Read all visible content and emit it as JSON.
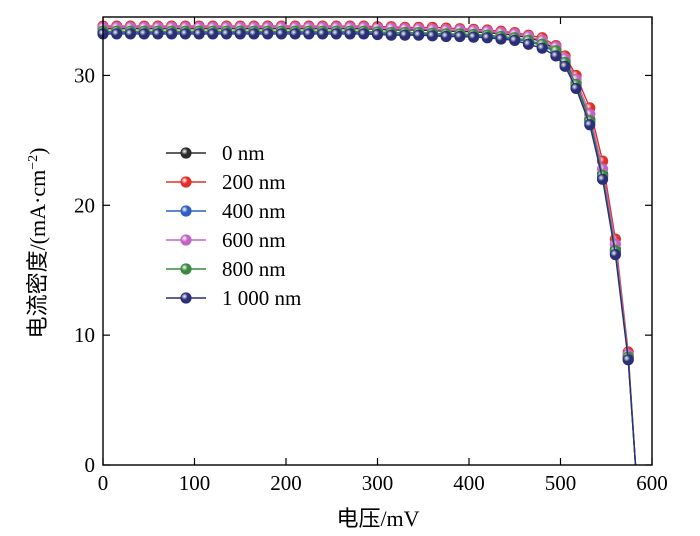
{
  "chart_data": {
    "type": "line",
    "title": "",
    "xlabel": "电压/mV",
    "ylabel": "电流密度/(mA·cm⁻²)",
    "ylabel_parts": {
      "main": "电流密度/(mA·cm",
      "sup": "−2",
      "close": ")"
    },
    "xlim": [
      0,
      600
    ],
    "ylim": [
      0,
      34.5
    ],
    "x_ticks": [
      "0",
      "100",
      "200",
      "300",
      "400",
      "500",
      "600"
    ],
    "y_ticks": [
      "0",
      "10",
      "20",
      "30"
    ],
    "x_tick_values": [
      0,
      100,
      200,
      300,
      400,
      500,
      600
    ],
    "y_tick_values": [
      0,
      10,
      20,
      30
    ],
    "grid": false,
    "legend_position": "center-left",
    "x": [
      0,
      15,
      30,
      45,
      60,
      75,
      90,
      105,
      120,
      135,
      150,
      165,
      180,
      195,
      210,
      225,
      240,
      255,
      270,
      285,
      300,
      315,
      330,
      345,
      360,
      375,
      390,
      405,
      420,
      435,
      450,
      465,
      480,
      495,
      505,
      517,
      532,
      546,
      560,
      574,
      582
    ],
    "series": [
      {
        "name": "0 nm",
        "color": "#2b2b2b",
        "values": [
          33.6,
          33.6,
          33.6,
          33.6,
          33.6,
          33.6,
          33.6,
          33.6,
          33.6,
          33.6,
          33.6,
          33.6,
          33.6,
          33.6,
          33.6,
          33.6,
          33.6,
          33.6,
          33.6,
          33.6,
          33.55,
          33.5,
          33.5,
          33.5,
          33.45,
          33.4,
          33.4,
          33.35,
          33.3,
          33.2,
          33.1,
          32.9,
          32.6,
          32.0,
          31.1,
          29.4,
          26.6,
          22.4,
          16.6,
          8.4,
          0
        ]
      },
      {
        "name": "200 nm",
        "color": "#e0302c",
        "values": [
          33.8,
          33.8,
          33.8,
          33.8,
          33.8,
          33.8,
          33.8,
          33.8,
          33.8,
          33.8,
          33.8,
          33.8,
          33.8,
          33.8,
          33.8,
          33.8,
          33.8,
          33.8,
          33.8,
          33.8,
          33.75,
          33.75,
          33.7,
          33.7,
          33.7,
          33.65,
          33.6,
          33.55,
          33.5,
          33.4,
          33.3,
          33.1,
          32.9,
          32.3,
          31.5,
          30.0,
          27.5,
          23.4,
          17.4,
          8.7,
          0
        ]
      },
      {
        "name": "400 nm",
        "color": "#2f5fc0",
        "values": [
          33.3,
          33.3,
          33.3,
          33.3,
          33.3,
          33.3,
          33.3,
          33.3,
          33.3,
          33.3,
          33.3,
          33.3,
          33.3,
          33.3,
          33.3,
          33.3,
          33.3,
          33.3,
          33.3,
          33.3,
          33.25,
          33.2,
          33.2,
          33.2,
          33.15,
          33.1,
          33.1,
          33.05,
          33.0,
          32.9,
          32.8,
          32.6,
          32.3,
          31.8,
          30.9,
          29.2,
          26.4,
          22.2,
          16.4,
          8.2,
          0
        ]
      },
      {
        "name": "600 nm",
        "color": "#c264c6",
        "values": [
          33.7,
          33.7,
          33.7,
          33.7,
          33.7,
          33.7,
          33.7,
          33.7,
          33.7,
          33.7,
          33.7,
          33.7,
          33.7,
          33.7,
          33.7,
          33.7,
          33.7,
          33.7,
          33.7,
          33.7,
          33.65,
          33.65,
          33.6,
          33.6,
          33.55,
          33.5,
          33.5,
          33.45,
          33.4,
          33.3,
          33.2,
          33.0,
          32.7,
          32.2,
          31.3,
          29.7,
          27.0,
          22.8,
          17.0,
          8.5,
          0
        ]
      },
      {
        "name": "800 nm",
        "color": "#3a8a3e",
        "values": [
          33.4,
          33.4,
          33.4,
          33.4,
          33.4,
          33.4,
          33.4,
          33.4,
          33.4,
          33.4,
          33.4,
          33.4,
          33.4,
          33.4,
          33.4,
          33.4,
          33.4,
          33.4,
          33.4,
          33.4,
          33.35,
          33.3,
          33.3,
          33.3,
          33.25,
          33.2,
          33.2,
          33.15,
          33.1,
          33.0,
          32.9,
          32.7,
          32.4,
          31.9,
          31.0,
          29.3,
          26.5,
          22.3,
          16.5,
          8.3,
          0
        ]
      },
      {
        "name": "1 000 nm",
        "color": "#2a2f78",
        "values": [
          33.2,
          33.2,
          33.2,
          33.2,
          33.2,
          33.2,
          33.2,
          33.2,
          33.2,
          33.2,
          33.2,
          33.2,
          33.2,
          33.2,
          33.2,
          33.2,
          33.2,
          33.2,
          33.2,
          33.2,
          33.15,
          33.1,
          33.1,
          33.1,
          33.05,
          33.0,
          33.0,
          32.95,
          32.9,
          32.8,
          32.7,
          32.4,
          32.1,
          31.5,
          30.7,
          29.0,
          26.2,
          22.0,
          16.2,
          8.1,
          0
        ]
      }
    ]
  }
}
